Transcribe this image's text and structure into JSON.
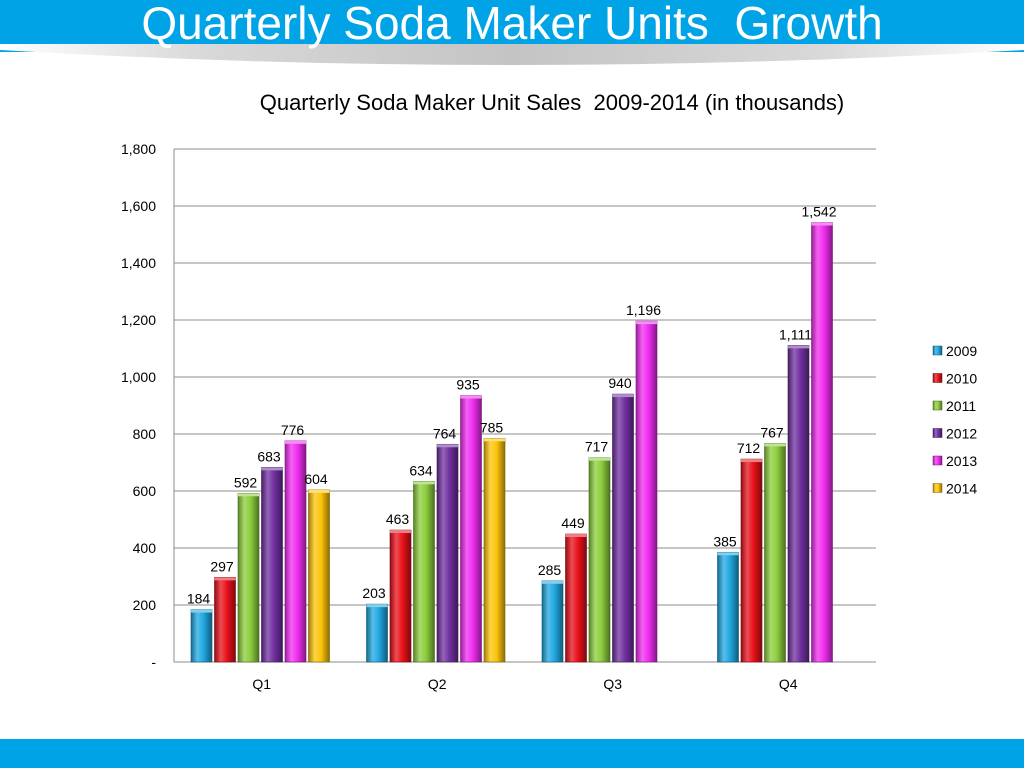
{
  "slide": {
    "title": "Quarterly Soda Maker Units  Growth",
    "colors": {
      "accent": "#00a3e6"
    }
  },
  "chart_data": {
    "type": "bar",
    "title": "Quarterly Soda Maker Unit Sales  2009-2014 (in thousands)",
    "xlabel": "",
    "ylabel": "",
    "categories": [
      "Q1",
      "Q2",
      "Q3",
      "Q4"
    ],
    "ylim": [
      0,
      1800
    ],
    "yticks": [
      0,
      200,
      400,
      600,
      800,
      1000,
      1200,
      1400,
      1600,
      1800
    ],
    "ytick_labels": [
      "-",
      "200",
      "400",
      "600",
      "800",
      "1,000",
      "1,200",
      "1,400",
      "1,600",
      "1,800"
    ],
    "grid": true,
    "legend_position": "right",
    "series": [
      {
        "name": "2009",
        "color": "#1fa8e0",
        "values": [
          184,
          203,
          285,
          385
        ],
        "labels": [
          "184",
          "203",
          "285",
          "385"
        ]
      },
      {
        "name": "2010",
        "color": "#e8101a",
        "values": [
          297,
          463,
          449,
          712
        ],
        "labels": [
          "297",
          "463",
          "449",
          "712"
        ]
      },
      {
        "name": "2011",
        "color": "#8ccd3c",
        "values": [
          592,
          634,
          717,
          767
        ],
        "labels": [
          "592",
          "634",
          "717",
          "767"
        ]
      },
      {
        "name": "2012",
        "color": "#7030a0",
        "values": [
          683,
          764,
          940,
          1111
        ],
        "labels": [
          "683",
          "764",
          "940",
          "1,111"
        ]
      },
      {
        "name": "2013",
        "color": "#f02cf0",
        "values": [
          776,
          935,
          1196,
          1542
        ],
        "labels": [
          "776",
          "935",
          "1,196",
          "1,542"
        ]
      },
      {
        "name": "2014",
        "color": "#fcc40a",
        "values": [
          604,
          785,
          null,
          null
        ],
        "labels": [
          "604",
          "785",
          null,
          null
        ]
      }
    ]
  }
}
